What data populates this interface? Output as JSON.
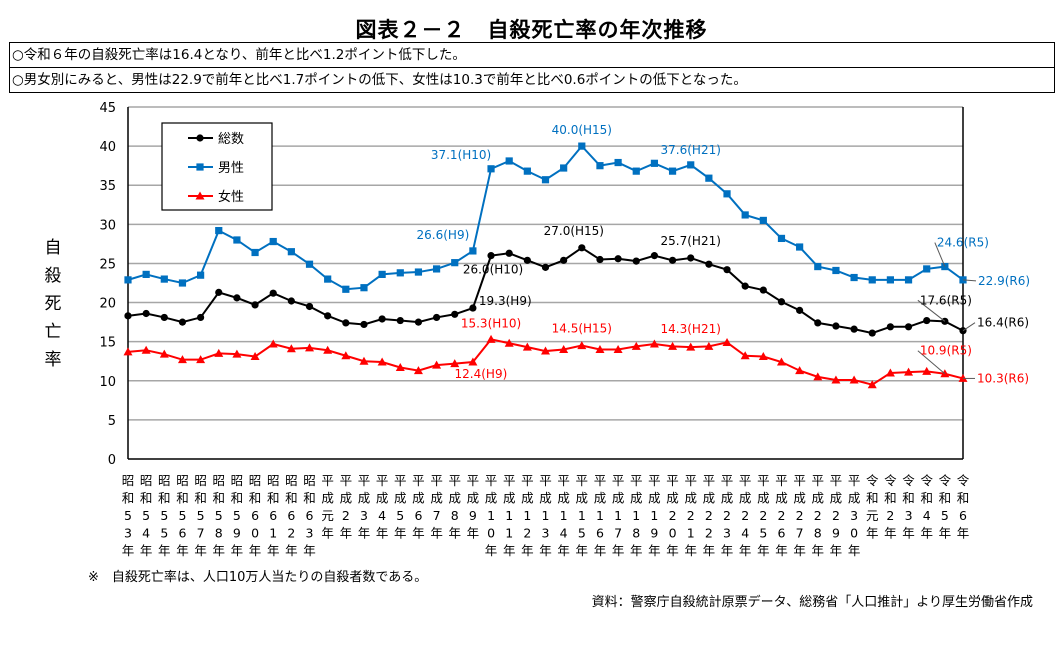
{
  "title": "図表２－２　自殺死亡率の年次推移",
  "notes": [
    "○令和６年の自殺死亡率は16.4となり、前年と比べ1.2ポイント低下した。",
    "○男女別にみると、男性は22.9で前年と比べ1.7ポイントの低下、女性は10.3で前年と比べ0.6ポイントの低下となった。"
  ],
  "footnote": "※　自殺死亡率は、人口10万人当たりの自殺者数である。",
  "source": "資料：警察庁自殺統計原票データ、総務省「人口推計」より厚生労働省作成",
  "chart_data": {
    "type": "line",
    "title": "図表２－２　自殺死亡率の年次推移",
    "ylabel": "自殺死亡率",
    "xlabel": "",
    "ylim": [
      0,
      45
    ],
    "yticks": [
      0,
      5,
      10,
      15,
      20,
      25,
      30,
      35,
      40,
      45
    ],
    "grid": true,
    "legend_position": "top-left",
    "categories": [
      "昭和53年",
      "昭和54年",
      "昭和55年",
      "昭和56年",
      "昭和57年",
      "昭和58年",
      "昭和59年",
      "昭和60年",
      "昭和61年",
      "昭和62年",
      "昭和63年",
      "平成元年",
      "平成2年",
      "平成3年",
      "平成4年",
      "平成5年",
      "平成6年",
      "平成7年",
      "平成8年",
      "平成9年",
      "平成10年",
      "平成11年",
      "平成12年",
      "平成13年",
      "平成14年",
      "平成15年",
      "平成16年",
      "平成17年",
      "平成18年",
      "平成19年",
      "平成20年",
      "平成21年",
      "平成22年",
      "平成23年",
      "平成24年",
      "平成25年",
      "平成26年",
      "平成27年",
      "平成28年",
      "平成29年",
      "平成30年",
      "令和元年",
      "令和2年",
      "令和3年",
      "令和4年",
      "令和5年",
      "令和6年"
    ],
    "series": [
      {
        "name": "総数",
        "color": "#000000",
        "marker": "circle",
        "values": [
          18.3,
          18.6,
          18.1,
          17.5,
          18.1,
          21.3,
          20.6,
          19.7,
          21.2,
          20.2,
          19.5,
          18.3,
          17.4,
          17.2,
          17.9,
          17.7,
          17.5,
          18.1,
          18.5,
          19.3,
          26.0,
          26.3,
          25.4,
          24.5,
          25.4,
          27.0,
          25.5,
          25.6,
          25.3,
          26.0,
          25.4,
          25.7,
          24.9,
          24.2,
          22.1,
          21.6,
          20.1,
          19.0,
          17.4,
          17.0,
          16.6,
          16.1,
          16.9,
          16.9,
          17.7,
          17.6,
          16.4
        ]
      },
      {
        "name": "男性",
        "color": "#0070C0",
        "marker": "square",
        "values": [
          22.9,
          23.6,
          23.0,
          22.5,
          23.5,
          29.2,
          28.0,
          26.4,
          27.8,
          26.5,
          24.9,
          23.0,
          21.7,
          21.9,
          23.6,
          23.8,
          23.9,
          24.3,
          25.1,
          26.6,
          37.1,
          38.1,
          36.8,
          35.7,
          37.2,
          40.0,
          37.5,
          37.9,
          36.8,
          37.8,
          36.8,
          37.6,
          35.9,
          33.9,
          31.2,
          30.5,
          28.2,
          27.1,
          24.6,
          24.1,
          23.2,
          22.9,
          22.9,
          22.9,
          24.3,
          24.6,
          22.9
        ]
      },
      {
        "name": "女性",
        "color": "#FF0000",
        "marker": "triangle",
        "values": [
          13.7,
          13.9,
          13.4,
          12.7,
          12.7,
          13.5,
          13.4,
          13.1,
          14.7,
          14.1,
          14.2,
          13.9,
          13.2,
          12.5,
          12.4,
          11.7,
          11.3,
          12.0,
          12.2,
          12.4,
          15.3,
          14.8,
          14.3,
          13.8,
          14.0,
          14.5,
          14.0,
          14.0,
          14.4,
          14.7,
          14.4,
          14.3,
          14.4,
          14.9,
          13.2,
          13.1,
          12.4,
          11.3,
          10.5,
          10.1,
          10.1,
          9.5,
          11.0,
          11.1,
          11.2,
          10.9,
          10.3
        ]
      }
    ],
    "annotations": [
      {
        "series": 1,
        "index": 19,
        "text": "26.6(H9)"
      },
      {
        "series": 1,
        "index": 20,
        "text": "37.1(H10)"
      },
      {
        "series": 1,
        "index": 25,
        "text": "40.0(H15)"
      },
      {
        "series": 1,
        "index": 31,
        "text": "37.6(H21)"
      },
      {
        "series": 1,
        "index": 45,
        "text": "24.6(R5)"
      },
      {
        "series": 1,
        "index": 46,
        "text": "22.9(R6)"
      },
      {
        "series": 0,
        "index": 19,
        "text": "19.3(H9)"
      },
      {
        "series": 0,
        "index": 20,
        "text": "26.0(H10)"
      },
      {
        "series": 0,
        "index": 25,
        "text": "27.0(H15)"
      },
      {
        "series": 0,
        "index": 31,
        "text": "25.7(H21)"
      },
      {
        "series": 0,
        "index": 45,
        "text": "17.6(R5)"
      },
      {
        "series": 0,
        "index": 46,
        "text": "16.4(R6)"
      },
      {
        "series": 2,
        "index": 19,
        "text": "12.4(H9)"
      },
      {
        "series": 2,
        "index": 20,
        "text": "15.3(H10)"
      },
      {
        "series": 2,
        "index": 25,
        "text": "14.5(H15)"
      },
      {
        "series": 2,
        "index": 31,
        "text": "14.3(H21)"
      },
      {
        "series": 2,
        "index": 45,
        "text": "10.9(R5)"
      },
      {
        "series": 2,
        "index": 46,
        "text": "10.3(R6)"
      }
    ]
  }
}
